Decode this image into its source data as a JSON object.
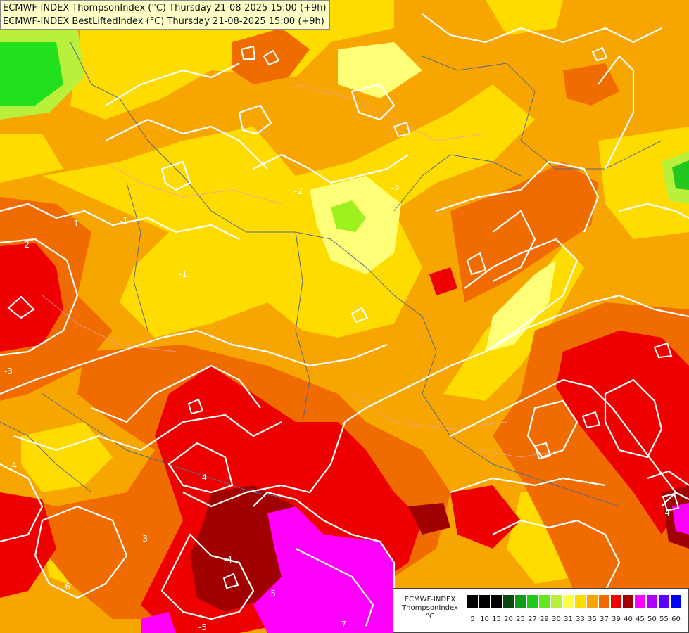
{
  "title": {
    "line1": "ECMWF-INDEX ThompsonIndex (°C) Thursday 21-08-2025 15:00 (+9h)",
    "line2": "ECMWF-INDEX BestLiftedIndex (°C) Thursday 21-08-2025 15:00 (+9h)"
  },
  "legend": {
    "line1": "ECMWF-INDEX",
    "line2": "ThompsonIndex",
    "unit": "°C",
    "classes": [
      {
        "label": "5",
        "color": "#000000"
      },
      {
        "label": "10",
        "color": "#000000"
      },
      {
        "label": "15",
        "color": "#000000"
      },
      {
        "label": "20",
        "color": "#0a4a10"
      },
      {
        "label": "25",
        "color": "#129a1c"
      },
      {
        "label": "27",
        "color": "#22c81e"
      },
      {
        "label": "29",
        "color": "#66e61e"
      },
      {
        "label": "30",
        "color": "#b8f03c"
      },
      {
        "label": "31",
        "color": "#ffff4a"
      },
      {
        "label": "33",
        "color": "#ffdc00"
      },
      {
        "label": "35",
        "color": "#f7a500"
      },
      {
        "label": "37",
        "color": "#f06c00"
      },
      {
        "label": "39",
        "color": "#ee0000"
      },
      {
        "label": "40",
        "color": "#a00000"
      },
      {
        "label": "45",
        "color": "#ff00ff"
      },
      {
        "label": "50",
        "color": "#b000ff"
      },
      {
        "label": "55",
        "color": "#5a00ff"
      },
      {
        "label": "60",
        "color": "#0000ff"
      }
    ]
  },
  "contour_labels": [
    "-2",
    "-1",
    "-1",
    "-1",
    "-2",
    "-2",
    "-3",
    "-3",
    "-4",
    "-4",
    "-4",
    "-4",
    "-5",
    "-5",
    "-6",
    "-7"
  ]
}
